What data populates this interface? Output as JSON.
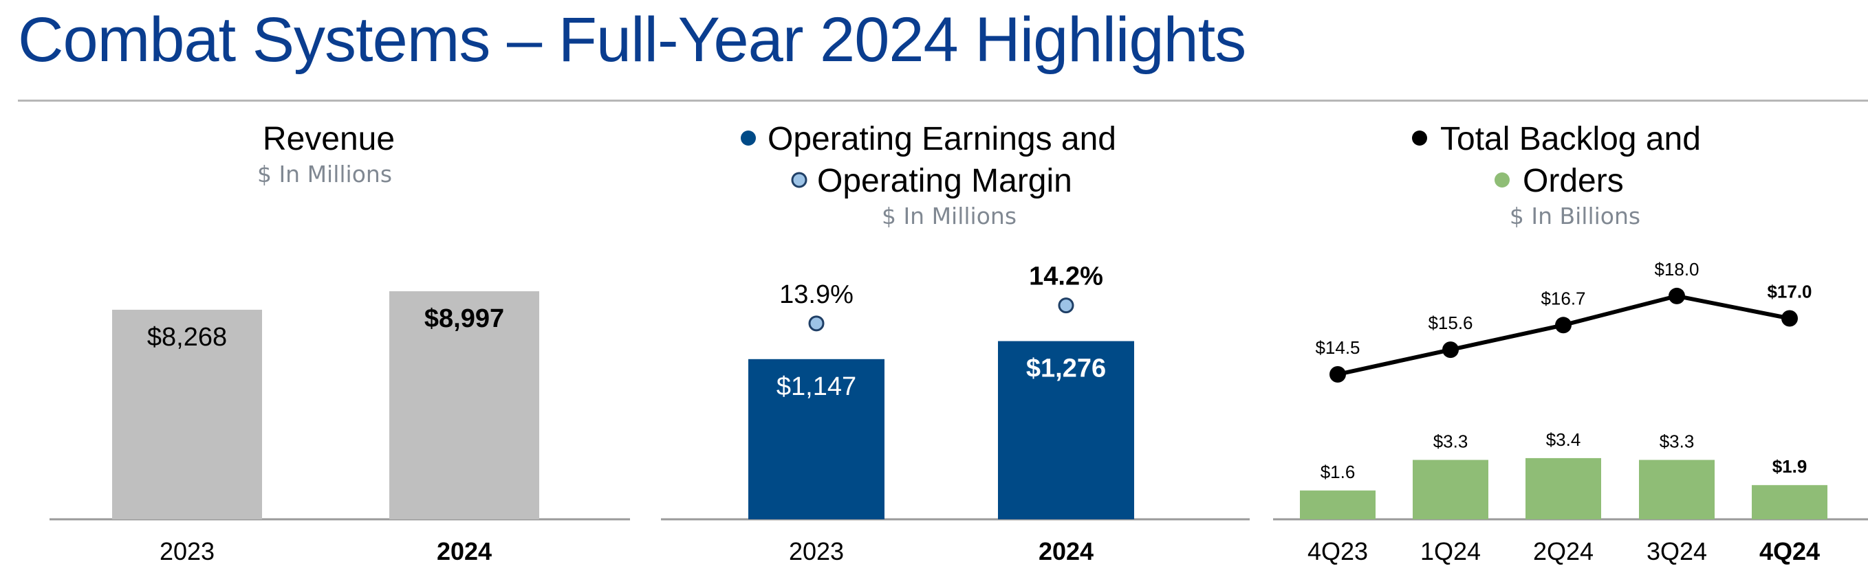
{
  "page": {
    "title": "Combat Systems – Full-Year 2024 Highlights"
  },
  "chart_data": [
    {
      "type": "bar",
      "title": "Revenue",
      "subtitle": "$ In Millions",
      "categories": [
        "2023",
        "2024"
      ],
      "values": [
        8268,
        8997
      ],
      "value_labels": [
        "$8,268",
        "$8,997"
      ],
      "bold_index": 1,
      "bar_color": "#bfbfbf",
      "ylim": [
        0,
        9500
      ],
      "grid": false
    },
    {
      "type": "bar",
      "title_lines": [
        "Operating Earnings and",
        "Operating Margin"
      ],
      "subtitle": "$ In Millions",
      "categories": [
        "2023",
        "2024"
      ],
      "series": [
        {
          "name": "Operating Earnings",
          "values": [
            1147,
            1276
          ],
          "labels": [
            "$1,147",
            "$1,276"
          ],
          "color": "#004a87",
          "marker_color": "#004a87"
        },
        {
          "name": "Operating Margin",
          "values": [
            13.9,
            14.2
          ],
          "labels": [
            "13.9%",
            "14.2%"
          ],
          "color": "#9dc3e6",
          "marker_color": "#9dc3e6"
        }
      ],
      "bold_index": 1,
      "ylim": [
        0,
        2150
      ],
      "grid": false
    },
    {
      "type": "bar",
      "title_lines": [
        "Total Backlog and",
        "Orders"
      ],
      "subtitle": "$ In Billions",
      "categories": [
        "4Q23",
        "1Q24",
        "2Q24",
        "3Q24",
        "4Q24"
      ],
      "series": [
        {
          "name": "Total Backlog",
          "type": "line",
          "values": [
            14.5,
            15.6,
            16.7,
            18.0,
            17.0
          ],
          "labels": [
            "$14.5",
            "$15.6",
            "$16.7",
            "$18.0",
            "$17.0"
          ],
          "color": "#000000"
        },
        {
          "name": "Orders",
          "type": "bar",
          "values": [
            1.6,
            3.3,
            3.4,
            3.3,
            1.9
          ],
          "labels": [
            "$1.6",
            "$3.3",
            "$3.4",
            "$3.3",
            "$1.9"
          ],
          "color": "#8fbd76"
        }
      ],
      "bold_index": 4,
      "grid": false
    }
  ]
}
